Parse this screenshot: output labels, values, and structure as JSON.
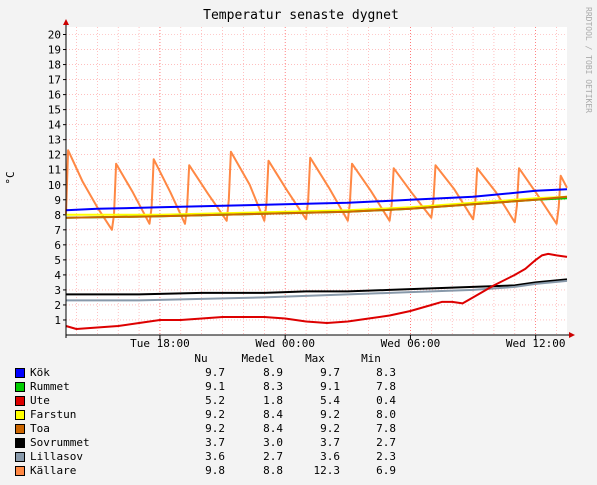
{
  "chart_data": {
    "type": "line",
    "title": "Temperatur senaste dygnet",
    "ylabel": "°C",
    "watermark": "RRDTOOL / TOBI OETIKER",
    "ylim": [
      0,
      20.5
    ],
    "y_ticks": [
      1,
      2,
      3,
      4,
      5,
      6,
      7,
      8,
      9,
      10,
      11,
      12,
      13,
      14,
      15,
      16,
      17,
      18,
      19,
      20
    ],
    "x_range_hours": [
      13.5,
      37.5
    ],
    "x_ticks": [
      {
        "hour": 18,
        "label": "Tue 18:00"
      },
      {
        "hour": 24,
        "label": "Wed 00:00"
      },
      {
        "hour": 30,
        "label": "Wed 06:00"
      },
      {
        "hour": 36,
        "label": "Wed 12:00"
      }
    ],
    "grid": true,
    "legend_headers": [
      "Nu",
      "Medel",
      "Max",
      "Min"
    ],
    "series": [
      {
        "name": "Kök",
        "color": "#0000ff",
        "nu": "9.7",
        "medel": "8.9",
        "max": "9.7",
        "min": "8.3",
        "x": [
          13.5,
          15,
          18,
          21,
          24,
          27,
          30,
          33,
          36,
          37.5
        ],
        "y": [
          8.3,
          8.4,
          8.5,
          8.6,
          8.7,
          8.8,
          9.0,
          9.2,
          9.6,
          9.7
        ]
      },
      {
        "name": "Rummet",
        "color": "#00cc00",
        "nu": "9.1",
        "medel": "8.3",
        "max": "9.1",
        "min": "7.8",
        "x": [
          13.5,
          18,
          21,
          24,
          27,
          30,
          33,
          36,
          37.5
        ],
        "y": [
          7.8,
          7.9,
          8.0,
          8.1,
          8.2,
          8.4,
          8.7,
          9.0,
          9.1
        ]
      },
      {
        "name": "Ute",
        "color": "#dd0000",
        "nu": "5.2",
        "medel": "1.8",
        "max": "5.4",
        "min": "0.4",
        "x": [
          13.5,
          14,
          15,
          16,
          17,
          18,
          19,
          20,
          21,
          22,
          23,
          24,
          25,
          26,
          27,
          28,
          29,
          30,
          31,
          31.5,
          32,
          32.5,
          33,
          34,
          35,
          35.5,
          36,
          36.3,
          36.6,
          37,
          37.5
        ],
        "y": [
          0.6,
          0.4,
          0.5,
          0.6,
          0.8,
          1.0,
          1.0,
          1.1,
          1.2,
          1.2,
          1.2,
          1.1,
          0.9,
          0.8,
          0.9,
          1.1,
          1.3,
          1.6,
          2.0,
          2.2,
          2.2,
          2.1,
          2.5,
          3.3,
          4.0,
          4.4,
          5.0,
          5.3,
          5.4,
          5.3,
          5.2
        ]
      },
      {
        "name": "Farstun",
        "color": "#ffff00",
        "nu": "9.2",
        "medel": "8.4",
        "max": "9.2",
        "min": "8.0",
        "x": [
          13.5,
          18,
          21,
          24,
          27,
          30,
          33,
          36,
          37.5
        ],
        "y": [
          8.0,
          8.0,
          8.1,
          8.2,
          8.3,
          8.5,
          8.8,
          9.1,
          9.2
        ]
      },
      {
        "name": "Toa",
        "color": "#cc6600",
        "nu": "9.2",
        "medel": "8.4",
        "max": "9.2",
        "min": "7.8",
        "x": [
          13.5,
          18,
          21,
          24,
          27,
          30,
          33,
          36,
          37.5
        ],
        "y": [
          7.8,
          7.9,
          8.0,
          8.1,
          8.2,
          8.4,
          8.7,
          9.0,
          9.2
        ]
      },
      {
        "name": "Sovrummet",
        "color": "#000000",
        "nu": "3.7",
        "medel": "3.0",
        "max": "3.7",
        "min": "2.7",
        "x": [
          13.5,
          17,
          20,
          23,
          25,
          27,
          29,
          31,
          33,
          35,
          36,
          37.5
        ],
        "y": [
          2.7,
          2.7,
          2.8,
          2.8,
          2.9,
          2.9,
          3.0,
          3.1,
          3.2,
          3.3,
          3.5,
          3.7
        ]
      },
      {
        "name": "Lillasov",
        "color": "#8899aa",
        "nu": "3.6",
        "medel": "2.7",
        "max": "3.6",
        "min": "2.3",
        "x": [
          13.5,
          17,
          20,
          23,
          25,
          27,
          29,
          31,
          33,
          35,
          36,
          37.5
        ],
        "y": [
          2.3,
          2.3,
          2.4,
          2.5,
          2.6,
          2.7,
          2.8,
          2.9,
          3.0,
          3.2,
          3.4,
          3.6
        ]
      },
      {
        "name": "Källare",
        "color": "#ff8844",
        "nu": "9.8",
        "medel": "8.8",
        "max": "12.3",
        "min": "6.9",
        "x": [
          13.5,
          13.6,
          14.3,
          15.0,
          15.7,
          15.8,
          15.9,
          16.7,
          17.5,
          17.6,
          17.7,
          18.5,
          19.2,
          19.3,
          19.4,
          20.3,
          21.2,
          21.3,
          21.4,
          22.3,
          23.0,
          23.1,
          23.2,
          24.1,
          25.0,
          25.1,
          25.2,
          26.1,
          27.0,
          27.1,
          27.2,
          28.1,
          29.0,
          29.1,
          29.2,
          30.1,
          31.0,
          31.1,
          31.2,
          32.1,
          33.0,
          33.1,
          33.2,
          34.1,
          35.0,
          35.1,
          35.2,
          36.1,
          37.0,
          37.1,
          37.2,
          37.5
        ],
        "y": [
          8.0,
          12.3,
          10.2,
          8.5,
          7.0,
          8.0,
          11.4,
          9.5,
          7.4,
          8.5,
          11.7,
          9.5,
          7.4,
          8.5,
          11.3,
          9.4,
          7.6,
          9.0,
          12.2,
          10.0,
          7.6,
          8.7,
          11.6,
          9.6,
          7.7,
          9.0,
          11.8,
          9.8,
          7.6,
          8.8,
          11.4,
          9.6,
          7.6,
          8.7,
          11.1,
          9.4,
          7.8,
          8.9,
          11.3,
          9.7,
          7.7,
          8.7,
          11.1,
          9.5,
          7.5,
          8.6,
          11.1,
          9.3,
          7.4,
          8.5,
          10.6,
          9.8
        ]
      }
    ]
  }
}
